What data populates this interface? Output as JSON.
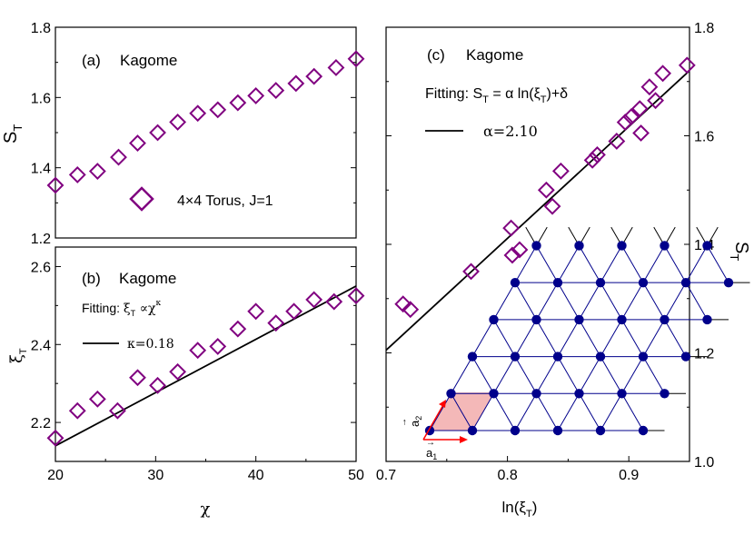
{
  "chart_data": [
    {
      "id": "a",
      "type": "scatter",
      "panel_label": "(a)",
      "title": "Kagome",
      "xlabel": "",
      "ylabel": "S",
      "ylabel_sub": "T",
      "xlim": [
        20,
        50
      ],
      "ylim": [
        1.2,
        1.8
      ],
      "yticks": [
        "1.2",
        "1.4",
        "1.6",
        "1.8"
      ],
      "legend": "4×4 Torus, J=1",
      "marker_color": "#800080",
      "x": [
        20,
        22.2,
        24.2,
        26.3,
        28.2,
        30.2,
        32.2,
        34.2,
        36.2,
        38.2,
        40,
        42,
        44,
        45.8,
        48,
        50
      ],
      "y": [
        1.35,
        1.38,
        1.39,
        1.43,
        1.47,
        1.5,
        1.53,
        1.555,
        1.565,
        1.585,
        1.605,
        1.62,
        1.64,
        1.66,
        1.685,
        1.71
      ]
    },
    {
      "id": "b",
      "type": "scatter",
      "panel_label": "(b)",
      "title": "Kagome",
      "fit_label_prefix": "Fitting: ",
      "fit_formula": "ξ",
      "fit_formula_sub": "T",
      "fit_formula_rest": " ∝χ",
      "fit_formula_sup": "κ",
      "fit_line_label": "κ=0.18",
      "xlabel": "χ",
      "ylabel": "ξ",
      "ylabel_sub": "T",
      "xlim": [
        20,
        50
      ],
      "ylim": [
        2.1,
        2.65
      ],
      "xticks": [
        "20",
        "30",
        "40",
        "50"
      ],
      "yticks": [
        "2.2",
        "2.4",
        "2.6"
      ],
      "marker_color": "#800080",
      "x": [
        20,
        22.2,
        24.2,
        26.2,
        28.2,
        30.2,
        32.2,
        34.2,
        36.2,
        38.2,
        40,
        42,
        43.8,
        45.8,
        47.8,
        50
      ],
      "y": [
        2.16,
        2.23,
        2.26,
        2.23,
        2.315,
        2.295,
        2.33,
        2.385,
        2.395,
        2.44,
        2.485,
        2.455,
        2.485,
        2.515,
        2.51,
        2.525
      ],
      "fit_x": [
        20,
        50
      ],
      "fit_y": [
        2.14,
        2.55
      ]
    },
    {
      "id": "c",
      "type": "scatter",
      "panel_label": "(c)",
      "title": "Kagome",
      "fit_label_prefix": "Fitting: S",
      "fit_label_sub": "T",
      "fit_label_mid": " = α ln(ξ",
      "fit_label_sub2": "T",
      "fit_label_end": ")+δ",
      "fit_line_label": "α=2.10",
      "xlabel": "ln(ξ",
      "xlabel_sub": "T",
      "xlabel_end": ")",
      "ylabel": "S",
      "ylabel_sub": "T",
      "xlim": [
        0.7,
        0.95
      ],
      "ylim": [
        1.0,
        1.8
      ],
      "xticks": [
        "0.7",
        "0.8",
        "0.9"
      ],
      "yticks": [
        "1.0",
        "1.2",
        "1.4",
        "1.6",
        "1.8"
      ],
      "marker_color": "#800080",
      "x": [
        0.714,
        0.72,
        0.77,
        0.803,
        0.804,
        0.81,
        0.832,
        0.837,
        0.844,
        0.87,
        0.874,
        0.89,
        0.897,
        0.902,
        0.909,
        0.91,
        0.917,
        0.922,
        0.928,
        0.948
      ],
      "y": [
        1.29,
        1.28,
        1.35,
        1.43,
        1.38,
        1.39,
        1.5,
        1.47,
        1.535,
        1.555,
        1.565,
        1.59,
        1.625,
        1.635,
        1.65,
        1.605,
        1.69,
        1.665,
        1.715,
        1.73
      ],
      "fit_x": [
        0.7,
        0.95
      ],
      "fit_y": [
        1.205,
        1.72
      ]
    }
  ],
  "inset": {
    "vector_a1": "a",
    "vector_a1_sub": "1",
    "vector_a2": "a",
    "vector_a2_sub": "2",
    "lattice_color": "#00008B",
    "cell_color": "#F4B8B8",
    "arrow_color": "#FF0000"
  }
}
